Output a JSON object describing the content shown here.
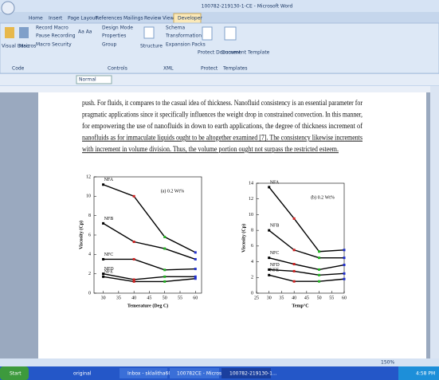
{
  "window": {
    "title": "100782-219130-1-CE - Microsoft Word"
  },
  "ribbon": {
    "tabs": [
      "Home",
      "Insert",
      "Page Layout",
      "References",
      "Mailings",
      "Review",
      "View",
      "Developer"
    ],
    "buttons": [
      "Visual Basic",
      "Macros",
      "Record Macro",
      "Pause Recording",
      "Macro Security",
      "Design Mode",
      "Properties",
      "Group",
      "Structure",
      "Schema",
      "Transformation",
      "Expansion Packs",
      "Protect Document",
      "Document Template"
    ],
    "groups": [
      "Code",
      "Controls",
      "XML",
      "Protect",
      "Templates"
    ]
  },
  "toolbar": {
    "style": "Normal"
  },
  "document": {
    "lines": [
      "push. For fluids, it compares to the casual idea of thickness. Nanofluid consistency is an essential parameter for",
      "pragmatic applications since it specifically influences the weight drop in constrained convection. In this manner,",
      "for empowering the use of nanofluids in down to earth applications, the degree of thickness increment of",
      "nanofluids as for immaculate liquids ought to be altogether examined [7]. The consistency likewise increments",
      "with increment in volume division. Thus, the volume portion ought not surpass the restricted esteem."
    ],
    "figures": [
      {
        "label": "(a) 0.2 Wt%",
        "y_label": "Viscosity (Cp)",
        "x_label": "Temerature (Deg C)",
        "xlim": [
          27,
          62
        ],
        "xticks": [
          30,
          35,
          40,
          45,
          50,
          55,
          60
        ],
        "ylim": [
          0,
          12
        ],
        "yticks": [
          0,
          2,
          4,
          6,
          8,
          10,
          12
        ],
        "x": [
          30,
          40,
          50,
          60
        ],
        "line_color": "#000000",
        "marker_colors": [
          "#000000",
          "#d02020",
          "#20b020",
          "#2030d0"
        ],
        "series": [
          {
            "name": "NFA",
            "values": [
              11.2,
              10,
              5.8,
              4.2
            ]
          },
          {
            "name": "NFB",
            "values": [
              7.2,
              5.3,
              4.6,
              3.5
            ]
          },
          {
            "name": "NFC",
            "values": [
              3.5,
              3.5,
              2.4,
              2.5
            ]
          },
          {
            "name": "NFD",
            "values": [
              2,
              1.4,
              1.7,
              1.7
            ]
          },
          {
            "name": "NFE",
            "values": [
              1.7,
              1.2,
              1.2,
              1.5
            ]
          }
        ]
      },
      {
        "label": "(b) 0.2 Wt%",
        "y_label": "Viscosity (Cp)",
        "x_label": "Temp°C",
        "xlim": [
          25,
          60
        ],
        "xticks": [
          25,
          30,
          35,
          40,
          45,
          50,
          55,
          60
        ],
        "ylim": [
          0,
          14
        ],
        "yticks": [
          0,
          2,
          4,
          6,
          8,
          10,
          12,
          14
        ],
        "x": [
          30,
          40,
          50,
          60
        ],
        "line_color": "#000000",
        "marker_colors": [
          "#000000",
          "#d02020",
          "#20b020",
          "#2030d0"
        ],
        "series": [
          {
            "name": "NFA",
            "values": [
              13.5,
              9.5,
              5.3,
              5.5
            ]
          },
          {
            "name": "NFB",
            "values": [
              8,
              5.5,
              4.5,
              4.5
            ]
          },
          {
            "name": "NFC",
            "values": [
              4.5,
              3.7,
              3,
              3.6
            ]
          },
          {
            "name": "NFD",
            "values": [
              3,
              2.8,
              2.3,
              2.5
            ]
          },
          {
            "name": "NFE",
            "values": [
              2.3,
              1.5,
              1.5,
              1.8
            ]
          }
        ]
      }
    ]
  },
  "status": {
    "zoom": "150%"
  },
  "taskbar": {
    "start": "Start",
    "items": [
      "original",
      "Inbox - sklalitha60...",
      "100782CE - Microso...",
      "100782-219130-1..."
    ],
    "clock": "4:58 PM"
  }
}
